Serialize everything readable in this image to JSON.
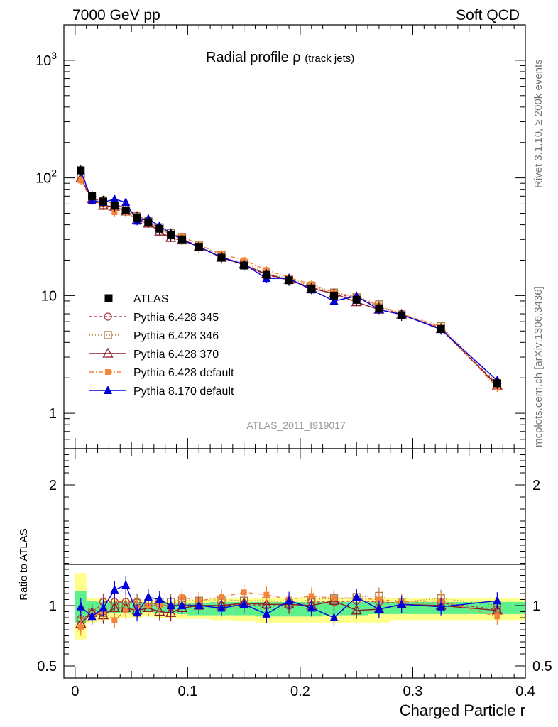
{
  "header": {
    "left": "7000 GeV pp",
    "right": "Soft QCD"
  },
  "side_text": {
    "rivet": "Rivet 3.1.10, ≥ 200k events",
    "mcplots": "mcplots.cern.ch [arXiv:1306.3436]"
  },
  "plot": {
    "title": "Radial profile",
    "title_symbol": "ρ",
    "title_suffix": "(track jets)",
    "analysis_id": "ATLAS_2011_I919017"
  },
  "chart_data": {
    "type": "line",
    "title": "Radial profile ρ (track jets)",
    "xlabel": "Charged Particle r",
    "ylabel_ratio": "Ratio to ATLAS",
    "xlim": [
      -0.01,
      0.4
    ],
    "ylim": [
      0.5,
      2000
    ],
    "yscale": "log",
    "ratio_ylim": [
      0.4,
      2.3
    ],
    "x_ticks": [
      "0",
      "0.1",
      "0.2",
      "0.3",
      "0.4"
    ],
    "y_ticks_main": [
      "1",
      "10",
      "10^2",
      "10^3"
    ],
    "y_ticks_ratio": [
      "0.5",
      "1",
      "2"
    ],
    "x": [
      0.005,
      0.015,
      0.025,
      0.035,
      0.045,
      0.055,
      0.065,
      0.075,
      0.085,
      0.095,
      0.11,
      0.13,
      0.15,
      0.17,
      0.19,
      0.21,
      0.23,
      0.25,
      0.27,
      0.29,
      0.325,
      0.375
    ],
    "series": [
      {
        "name": "ATLAS",
        "color": "#000000",
        "marker": "square",
        "values": [
          116,
          70,
          63,
          58,
          53,
          46,
          42,
          37,
          33,
          30,
          26,
          21,
          18,
          15,
          13.5,
          11.5,
          10,
          9.2,
          7.8,
          6.8,
          5.2,
          1.8
        ],
        "ratio": [
          1,
          1,
          1,
          1,
          1,
          1,
          1,
          1,
          1,
          1,
          1,
          1,
          1,
          1,
          1,
          1,
          1,
          1,
          1,
          1,
          1,
          1
        ]
      },
      {
        "name": "Pythia 6.428 345",
        "color": "#b5374f",
        "marker": "circle-open",
        "dash": "4,3",
        "values": [
          104,
          65,
          65,
          60,
          55,
          48,
          43,
          37,
          33,
          30.5,
          26,
          21,
          18.2,
          15,
          13.5,
          11.8,
          10.3,
          9.6,
          8,
          6.9,
          5.3,
          1.75
        ],
        "ratio": [
          0.89,
          0.93,
          1.03,
          1.03,
          1.03,
          1.03,
          1.02,
          1.01,
          0.99,
          1.01,
          1.0,
          1.0,
          1.01,
          1.0,
          1.0,
          1.03,
          1.03,
          1.04,
          1.03,
          1.02,
          1.02,
          0.97
        ]
      },
      {
        "name": "Pythia 6.428 346",
        "color": "#a8753a",
        "marker": "square-open",
        "dash": "1,3",
        "values": [
          101,
          66,
          59,
          57,
          52,
          47,
          43,
          38,
          34,
          31.5,
          27,
          22,
          18.8,
          15.6,
          13.8,
          12.1,
          10.6,
          9.8,
          8.4,
          7.0,
          5.5,
          1.8
        ],
        "ratio": [
          0.87,
          0.94,
          0.94,
          0.98,
          0.98,
          1.02,
          1.02,
          1.03,
          1.03,
          1.05,
          1.04,
          1.05,
          1.04,
          1.04,
          1.02,
          1.05,
          1.06,
          1.07,
          1.08,
          1.03,
          1.06,
          1.0
        ]
      },
      {
        "name": "Pythia 6.428 370",
        "color": "#8c1a28",
        "marker": "triangle-open",
        "values": [
          99,
          66,
          58,
          57,
          52,
          44,
          41,
          35,
          31,
          29.5,
          26,
          21,
          18.3,
          15.2,
          13.6,
          11.5,
          10.4,
          8.8,
          7.6,
          6.9,
          5.2,
          1.72
        ],
        "ratio": [
          0.85,
          0.94,
          0.92,
          0.98,
          0.98,
          0.96,
          0.98,
          0.95,
          0.94,
          0.98,
          1.0,
          1.0,
          1.02,
          1.01,
          1.01,
          1.0,
          1.04,
          0.96,
          0.97,
          1.01,
          1.0,
          0.96
        ]
      },
      {
        "name": "Pythia 6.428 default",
        "color": "#f5843a",
        "marker": "square-filled",
        "dash": "6,3,1,3",
        "values": [
          95,
          64,
          60,
          51,
          51,
          45,
          42,
          37,
          33,
          32,
          27,
          22.5,
          20,
          16.5,
          14.2,
          12.5,
          10.6,
          9.8,
          8.2,
          7.0,
          5.4,
          1.65
        ],
        "ratio": [
          0.82,
          0.91,
          0.95,
          0.88,
          0.96,
          0.98,
          1.0,
          1.0,
          1.0,
          1.07,
          1.04,
          1.07,
          1.11,
          1.09,
          1.05,
          1.08,
          1.06,
          1.06,
          1.05,
          1.03,
          1.04,
          0.91
        ]
      },
      {
        "name": "Pythia 8.170 default",
        "color": "#0000dd",
        "marker": "triangle-filled",
        "values": [
          115,
          64,
          62,
          66,
          62,
          43,
          45,
          39,
          34,
          30,
          26,
          21.2,
          18.5,
          14,
          14,
          11.2,
          9,
          9.9,
          7.6,
          6.9,
          5.15,
          1.9
        ],
        "ratio": [
          0.99,
          0.91,
          0.98,
          1.13,
          1.17,
          0.94,
          1.07,
          1.05,
          1.0,
          1.0,
          1.0,
          0.98,
          1.01,
          0.93,
          1.04,
          0.98,
          0.9,
          1.07,
          0.97,
          1.01,
          0.99,
          1.04
        ]
      }
    ],
    "band_outer": {
      "lo": [
        0.72,
        0.86,
        0.88,
        0.89,
        0.9,
        0.9,
        0.91,
        0.9,
        0.9,
        0.89,
        0.89,
        0.88,
        0.87,
        0.86,
        0.86,
        0.86,
        0.86,
        0.86,
        0.86,
        0.88,
        0.88,
        0.88
      ],
      "hi": [
        1.27,
        1.06,
        1.06,
        1.05,
        1.05,
        1.05,
        1.04,
        1.04,
        1.04,
        1.05,
        1.05,
        1.06,
        1.06,
        1.06,
        1.06,
        1.06,
        1.06,
        1.06,
        1.06,
        1.06,
        1.06,
        1.06
      ]
    },
    "band_inner": {
      "lo": [
        0.86,
        0.92,
        0.94,
        0.94,
        0.94,
        0.94,
        0.95,
        0.94,
        0.94,
        0.93,
        0.92,
        0.92,
        0.92,
        0.91,
        0.91,
        0.91,
        0.92,
        0.92,
        0.93,
        0.93,
        0.93,
        0.93
      ],
      "hi": [
        1.12,
        1.04,
        1.03,
        1.03,
        1.03,
        1.03,
        1.02,
        1.02,
        1.02,
        1.02,
        1.02,
        1.03,
        1.03,
        1.03,
        1.03,
        1.03,
        1.03,
        1.03,
        1.03,
        1.03,
        1.03,
        1.03
      ]
    }
  }
}
